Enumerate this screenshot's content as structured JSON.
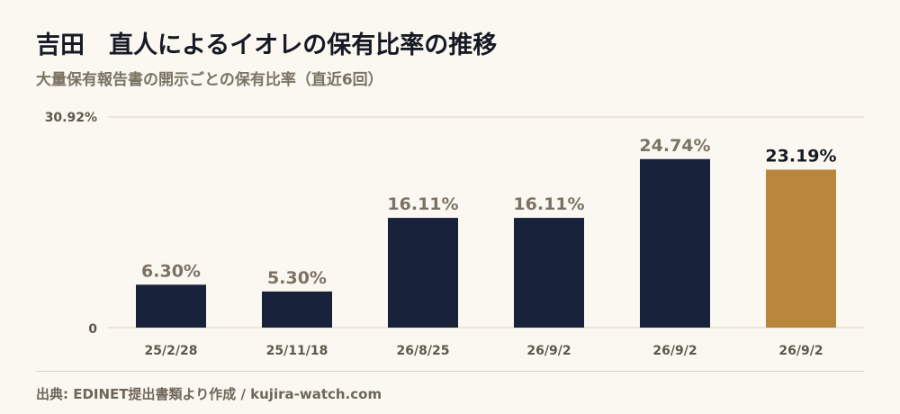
{
  "header": {
    "title": "吉田　直人によるイオレの保有比率の推移",
    "subtitle": "大量保有報告書の開示ごとの保有比率（直近6回）"
  },
  "footer": {
    "source": "出典: EDINET提出書類より作成 / kujira-watch.com"
  },
  "colors": {
    "bar": "#18223a",
    "bar_highlight": "#b8863d",
    "label": "#7b7264",
    "label_highlight": "#161a24",
    "grid": "#ddd5c4",
    "tick": "#5f574b"
  },
  "chart_data": {
    "type": "bar",
    "categories": [
      "25/2/28",
      "25/11/18",
      "26/8/25",
      "26/9/2",
      "26/9/2",
      "26/9/2"
    ],
    "values": [
      6.3,
      5.3,
      16.11,
      16.11,
      24.74,
      23.19
    ],
    "data_labels": [
      "6.30%",
      "5.30%",
      "16.11%",
      "16.11%",
      "24.74%",
      "23.19%"
    ],
    "highlight_index": 5,
    "ylim": [
      0,
      30.92
    ],
    "ytick_labels": [
      "0",
      "30.92%"
    ],
    "grid": true
  }
}
